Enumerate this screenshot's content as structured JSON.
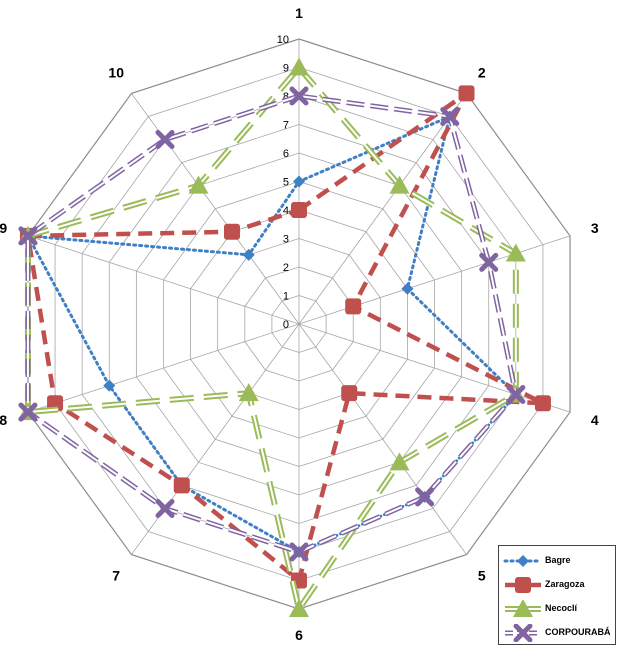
{
  "chart_data": {
    "type": "radar",
    "categories": [
      "1",
      "2",
      "3",
      "4",
      "5",
      "6",
      "7",
      "8",
      "9",
      "10"
    ],
    "rlim": [
      0,
      10
    ],
    "ticks": [
      "0",
      "1",
      "2",
      "3",
      "4",
      "5",
      "6",
      "7",
      "8",
      "9",
      "10"
    ],
    "grid": true,
    "legend_position": "bottom-right",
    "series": [
      {
        "name": "Bagre",
        "color": "#3f7fc4",
        "line": "dotted",
        "marker": "diamond",
        "values": [
          5,
          9,
          4,
          8,
          7.5,
          8,
          7,
          7,
          10,
          3
        ]
      },
      {
        "name": "Zaragoza",
        "color": "#c0504d",
        "line": "dashed",
        "marker": "square",
        "values": [
          4,
          10,
          2,
          9,
          3,
          9,
          7,
          9,
          10,
          4
        ]
      },
      {
        "name": "Necoclí",
        "color": "#9bbb59",
        "line": "double",
        "marker": "triangle",
        "values": [
          9,
          6,
          8,
          8,
          6,
          10,
          3,
          10,
          10,
          6
        ]
      },
      {
        "name": "CORPOURABÁ",
        "color": "#8064a2",
        "line": "double-dashed",
        "marker": "x",
        "values": [
          8,
          9,
          7,
          8,
          7.5,
          8,
          8,
          10,
          10,
          8
        ]
      }
    ]
  }
}
